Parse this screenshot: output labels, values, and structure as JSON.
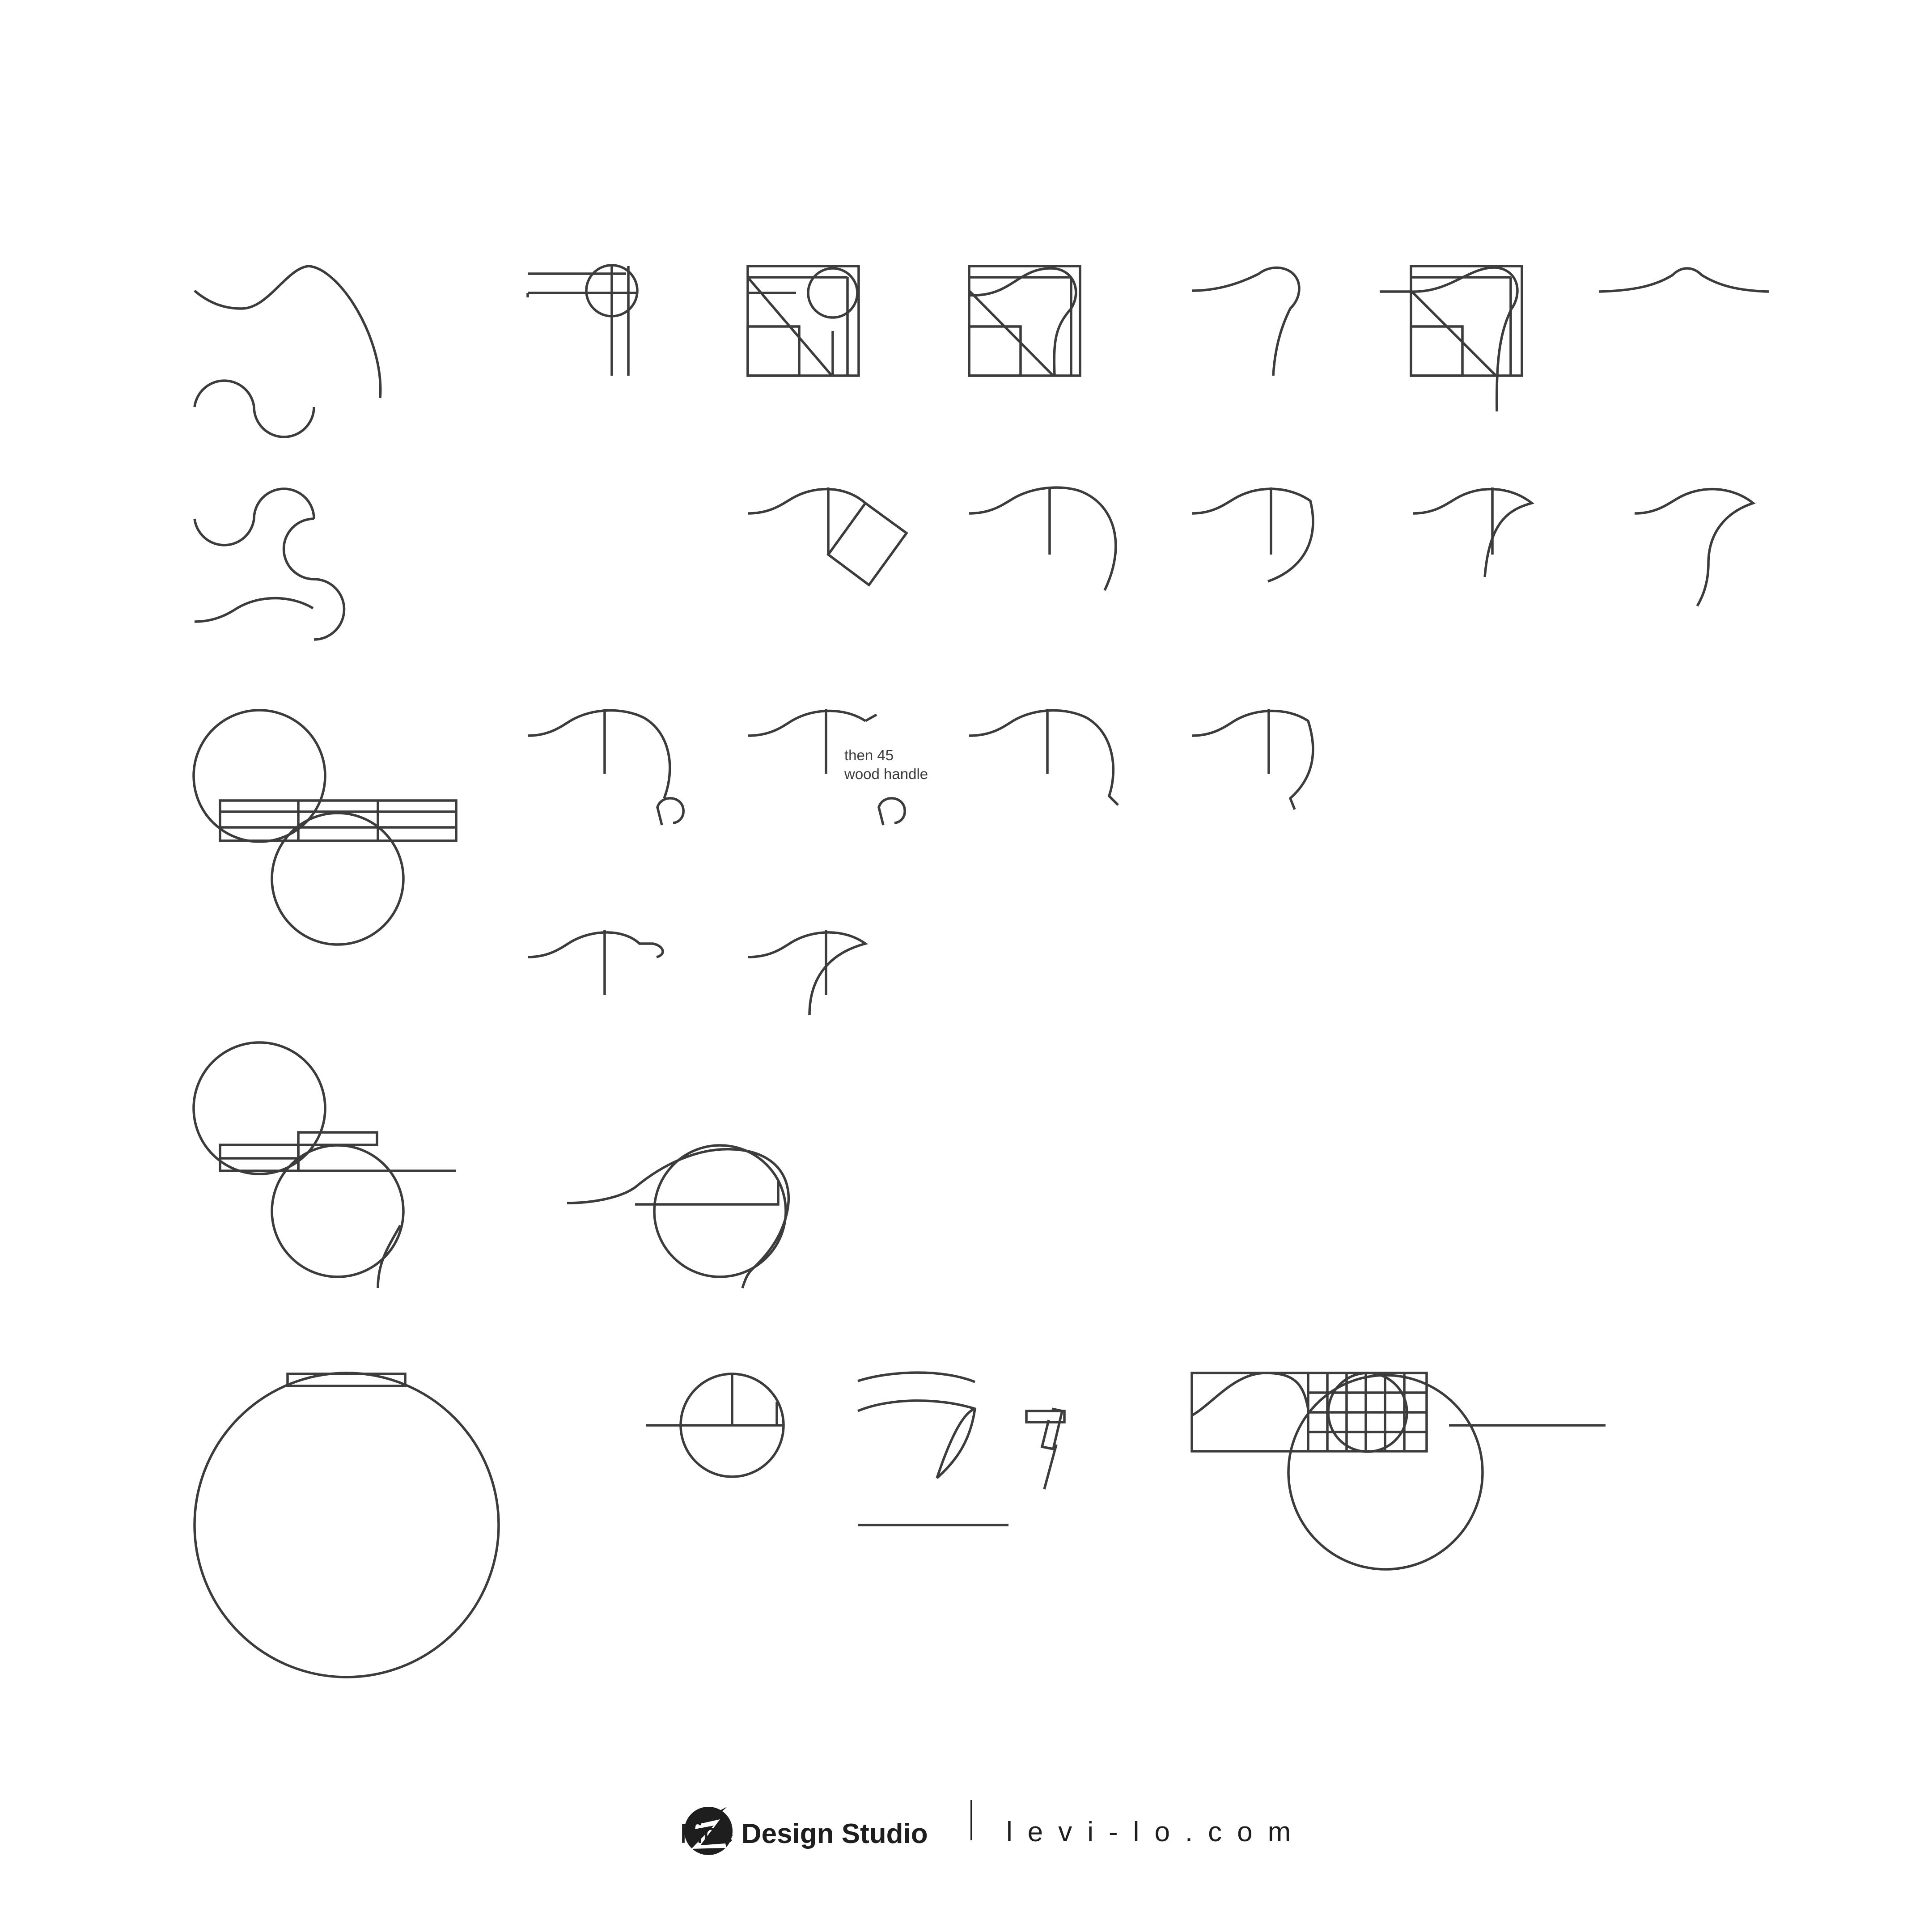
{
  "annotation": {
    "line1": "then 45",
    "line2": "wood handle"
  },
  "footer": {
    "brand_light": "Fine",
    "brand_bold": "Design Studio",
    "website": "levi-lo.com"
  },
  "colors": {
    "stroke": "#3c3c3c",
    "footer_text": "#1e1e1e",
    "background": "#ffffff"
  },
  "icons": {
    "logo": "studio-logo-icon"
  }
}
